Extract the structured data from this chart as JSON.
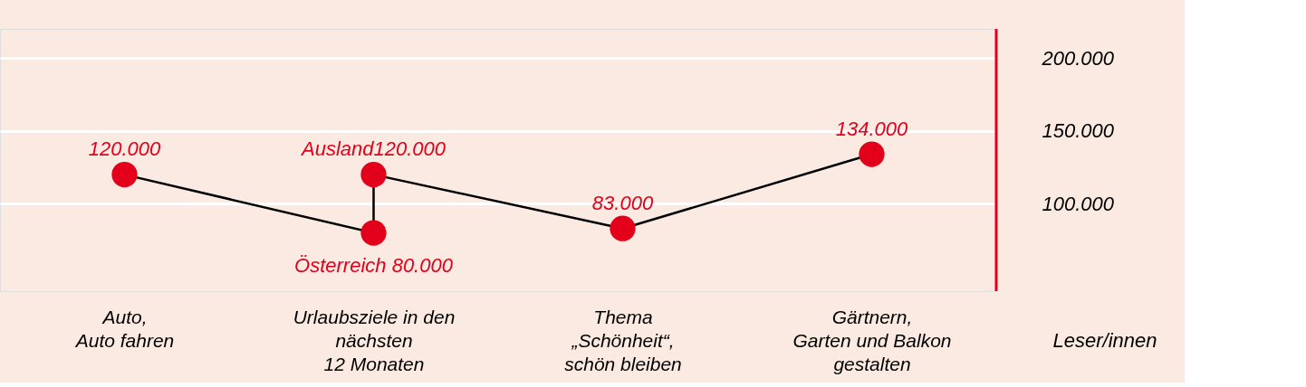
{
  "chart_data": {
    "type": "line",
    "categories": [
      "Auto,\nAuto fahren",
      "Urlaubsziele in den\nnächsten\n12 Monaten",
      "Thema\n„Schönheit“,\nschön bleiben",
      "Gärtnern,\nGarten und Balkon\ngestalten"
    ],
    "ylabel": "Leser/innen",
    "series": [
      {
        "color": "#e2001a",
        "x": [
          "Auto,\nAuto fahren",
          "Urlaubsziele in den\nnächsten\n12 Monaten",
          "Urlaubsziele in den\nnächsten\n12 Monaten",
          "Thema\n„Schönheit“,\nschön bleiben",
          "Gärtnern,\nGarten und Balkon\ngestalten"
        ],
        "values": [
          120000,
          80000,
          120000,
          83000,
          134000
        ],
        "value_labels": [
          "120.000",
          "Österreich 80.000",
          "Ausland120.000",
          "83.000",
          "134.000"
        ]
      }
    ],
    "ylim": [
      40000,
      220000
    ],
    "yticks": [
      {
        "value": 100000,
        "label": "100.000"
      },
      {
        "value": 150000,
        "label": "150.000"
      },
      {
        "value": 200000,
        "label": "200.000"
      }
    ],
    "grid": "y",
    "marker": "circle"
  }
}
